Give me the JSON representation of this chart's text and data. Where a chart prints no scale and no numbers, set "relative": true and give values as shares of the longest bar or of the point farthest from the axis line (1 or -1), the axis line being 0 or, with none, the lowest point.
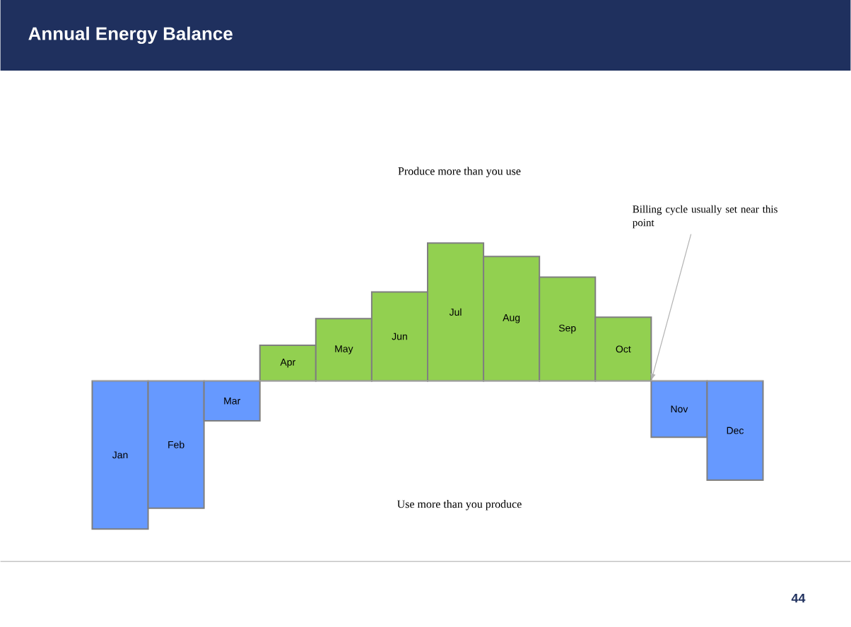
{
  "chart_data": {
    "type": "bar",
    "title": "Annual Energy Balance",
    "relative": true,
    "categories": [
      "Jan",
      "Feb",
      "Mar",
      "Apr",
      "May",
      "Jun",
      "Jul",
      "Aug",
      "Sep",
      "Oct",
      "Nov",
      "Dec"
    ],
    "values": [
      -1,
      -0.86,
      -0.27,
      0.24,
      0.42,
      0.6,
      0.93,
      0.84,
      0.7,
      0.43,
      -0.38,
      -0.67
    ],
    "colors": [
      "#6699ff",
      "#6699ff",
      "#6699ff",
      "#92d050",
      "#92d050",
      "#92d050",
      "#92d050",
      "#92d050",
      "#92d050",
      "#92d050",
      "#6699ff",
      "#6699ff"
    ],
    "annotations": [
      "Produce more than you  use",
      "Billing cycle usually set near this point",
      "Use more than you produce",
      "44"
    ]
  }
}
